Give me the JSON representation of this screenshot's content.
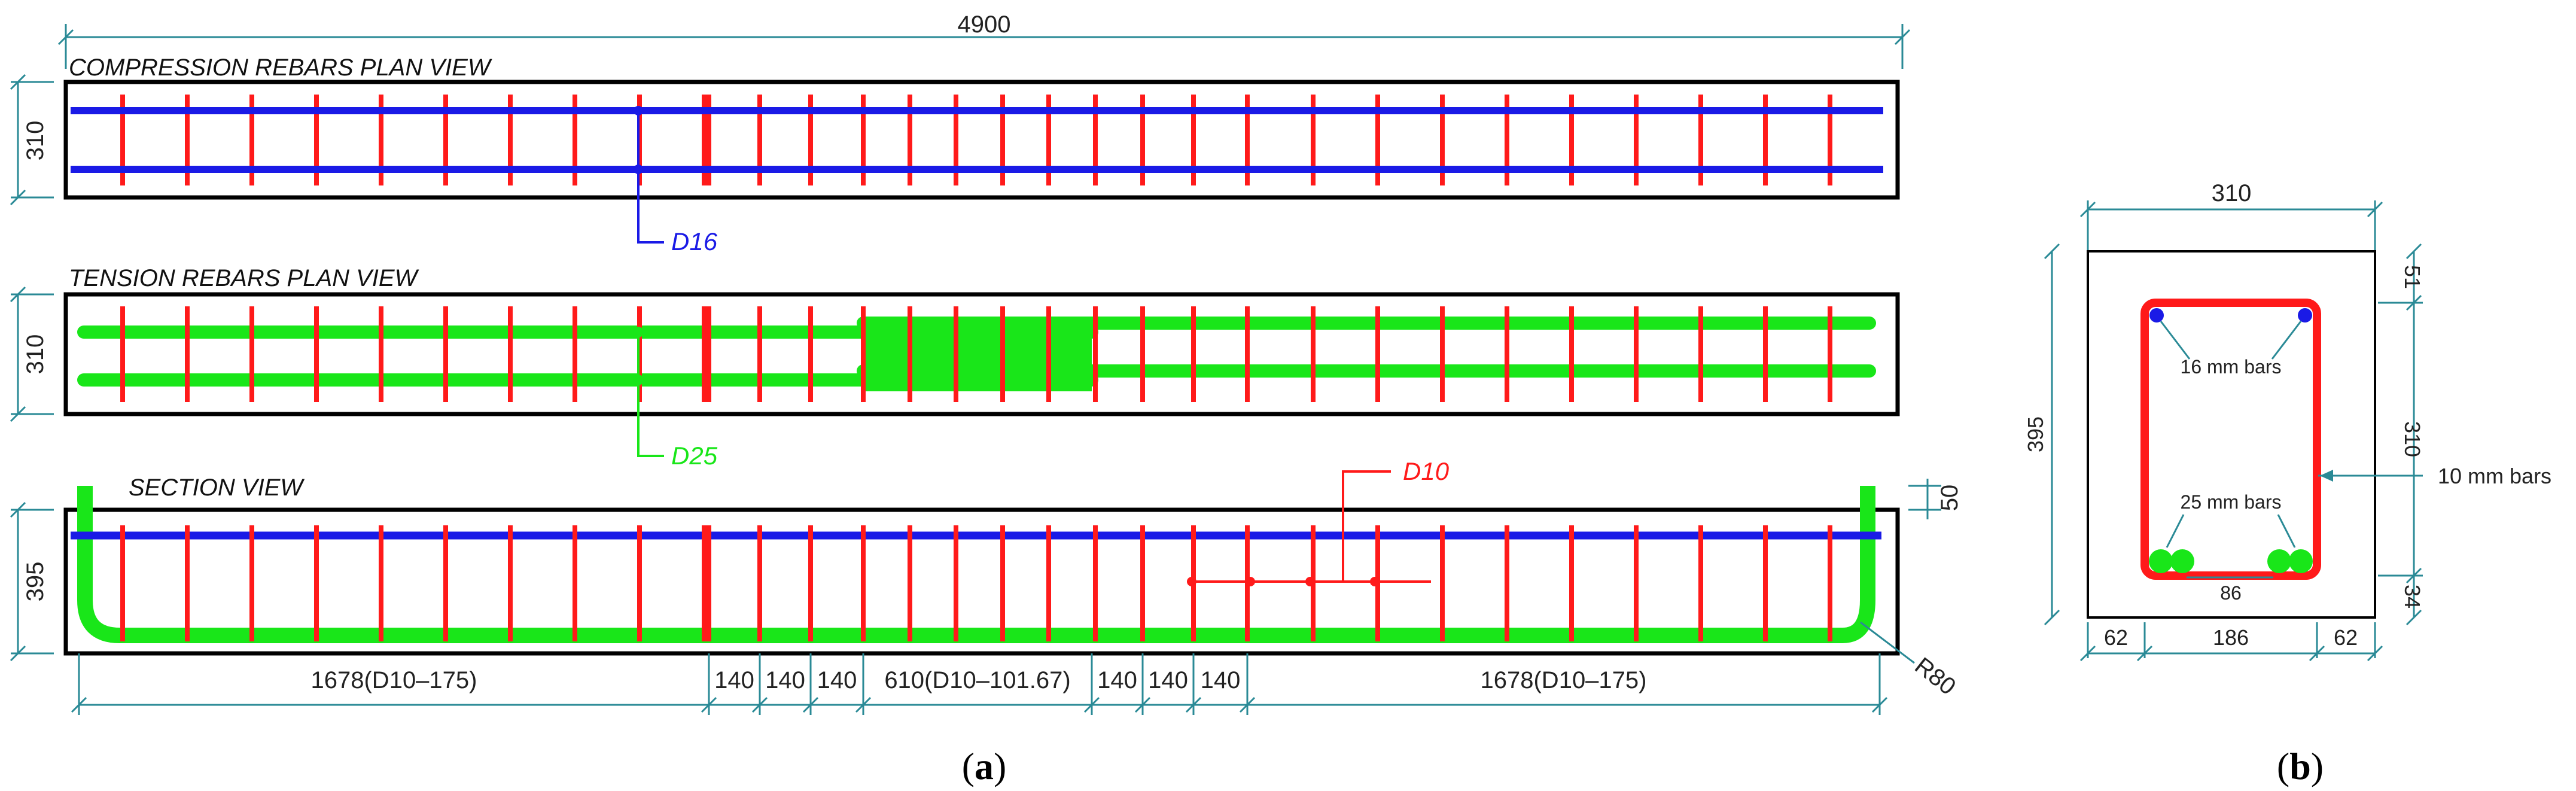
{
  "colors": {
    "stirrup": "#ff1a1a",
    "compression_bar": "#1a1ae6",
    "tension_bar": "#19e619",
    "dimension": "#2a8a96",
    "outline": "#000000"
  },
  "a": {
    "total_length": "4900",
    "compression_title": "COMPRESSION REBARS PLAN VIEW",
    "tension_title": "TENSION REBARS PLAN VIEW",
    "section_title": "SECTION VIEW",
    "width_compression": "310",
    "width_tension": "310",
    "height_section": "395",
    "cover_top": "50",
    "bend_radius": "R80",
    "label_compression": "D16",
    "label_tension": "D25",
    "label_stirrup": "D10",
    "spacing_segments": [
      "1678(D10–175)",
      "140",
      "140",
      "140",
      "610(D10–101.67)",
      "140",
      "140",
      "140",
      "1678(D10–175)"
    ],
    "caption": "(a)"
  },
  "b": {
    "width": "310",
    "height": "395",
    "top_cover": "51",
    "core_height": "310",
    "bottom_cover": "34",
    "side_left": "62",
    "core_width": "186",
    "side_right": "62",
    "bar_spacing": "86",
    "label_top_bars": "16 mm bars",
    "label_bottom_bars": "25 mm bars",
    "label_stirrup": "10 mm bars",
    "caption": "(b)"
  }
}
